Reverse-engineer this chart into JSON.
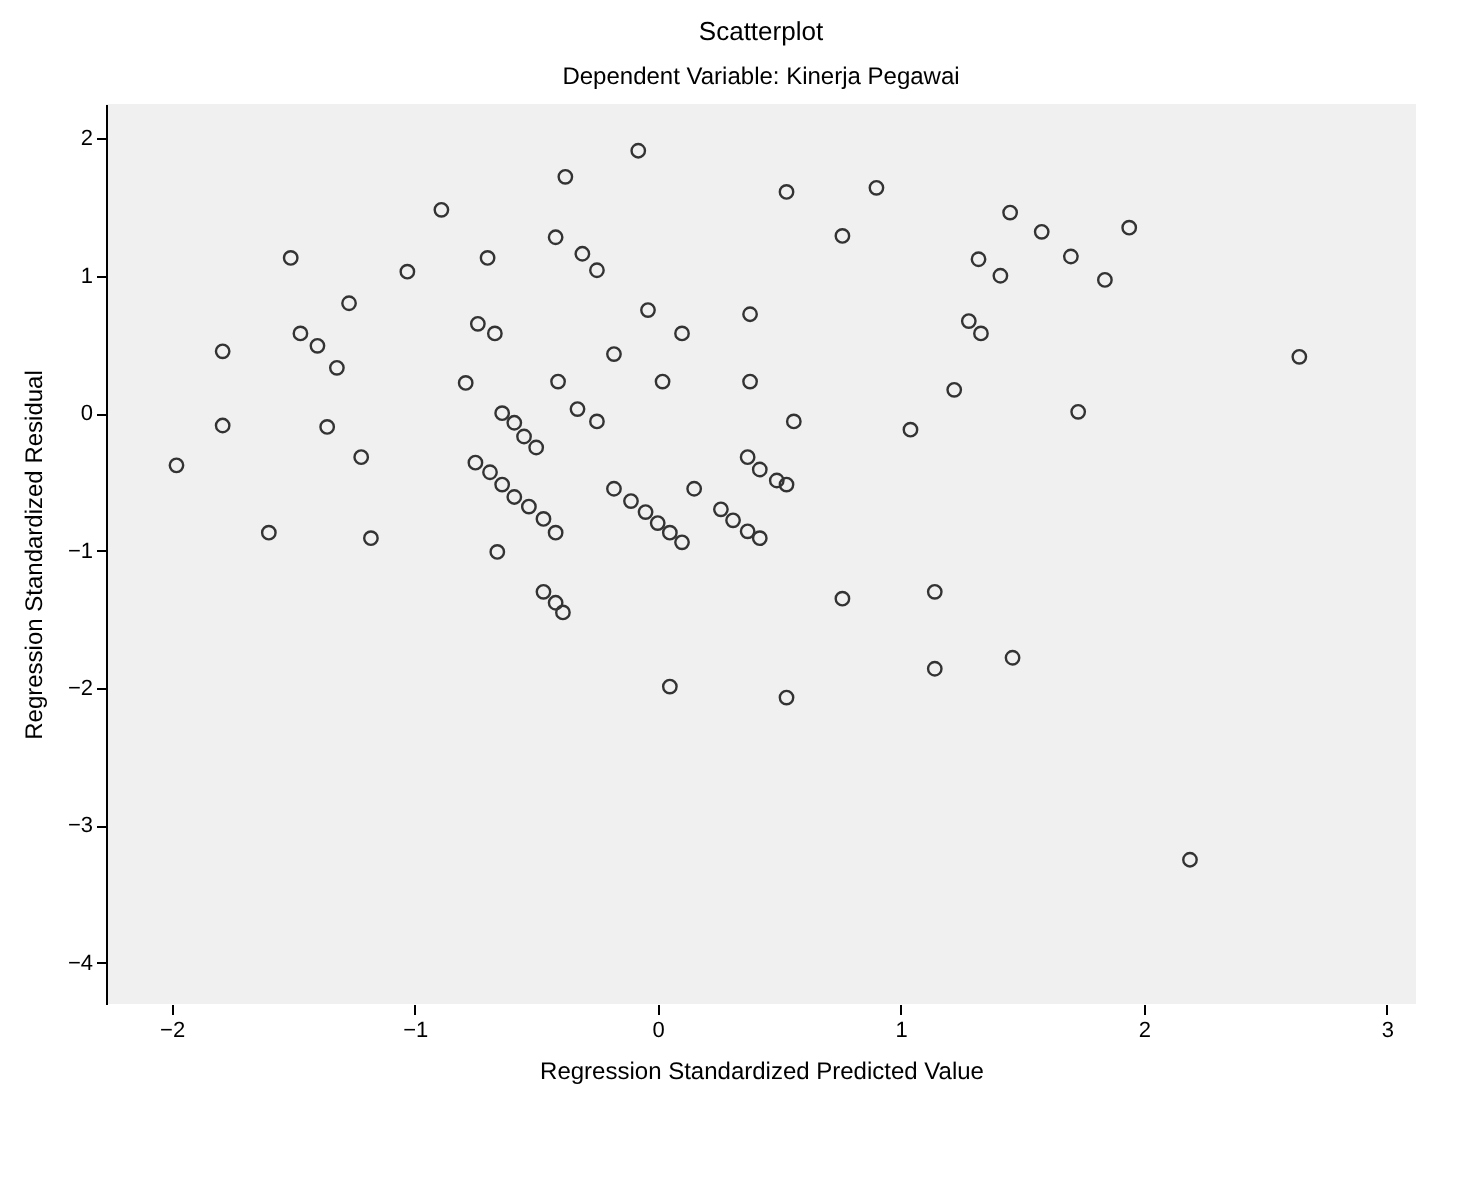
{
  "chart_data": {
    "type": "scatter",
    "title": "Scatterplot",
    "subtitle": "Dependent Variable: Kinerja Pegawai",
    "xlabel": "Regression Standardized Predicted Value",
    "ylabel": "Regression Standardized Residual",
    "xlim": [
      -2.27,
      3.12
    ],
    "ylim": [
      -4.3,
      2.25
    ],
    "xticks": [
      -2,
      -1,
      0,
      1,
      2,
      3
    ],
    "yticks": [
      -4,
      -3,
      -2,
      -1,
      0,
      1,
      2
    ],
    "grid": false,
    "marker": "circle",
    "x": [
      -1.98,
      -1.79,
      -1.79,
      -1.6,
      -1.51,
      -1.47,
      -1.4,
      -1.32,
      -1.36,
      -1.27,
      -1.22,
      -1.18,
      -1.03,
      -0.89,
      -0.7,
      -0.79,
      -0.74,
      -0.67,
      -0.64,
      -0.59,
      -0.55,
      -0.5,
      -0.75,
      -0.69,
      -0.64,
      -0.59,
      -0.53,
      -0.47,
      -0.42,
      -0.66,
      -0.47,
      -0.42,
      -0.39,
      -0.38,
      -0.42,
      -0.31,
      -0.25,
      -0.41,
      -0.33,
      -0.25,
      -0.18,
      -0.08,
      -0.04,
      0.1,
      0.02,
      -0.18,
      -0.11,
      -0.05,
      0.0,
      0.05,
      0.1,
      0.15,
      0.26,
      0.31,
      0.37,
      0.42,
      0.38,
      0.38,
      0.37,
      0.42,
      0.49,
      0.53,
      0.56,
      0.05,
      0.53,
      0.53,
      0.76,
      0.76,
      0.9,
      1.04,
      1.14,
      1.14,
      1.22,
      1.28,
      1.33,
      1.32,
      1.41,
      1.45,
      1.58,
      1.7,
      1.84,
      1.94,
      1.73,
      1.46,
      2.19,
      2.64
    ],
    "series": [
      {
        "color": "#333333",
        "values": [
          -0.38,
          0.45,
          -0.09,
          -0.87,
          1.13,
          0.58,
          0.49,
          0.33,
          -0.1,
          0.8,
          -0.32,
          -0.91,
          1.03,
          1.48,
          1.13,
          0.22,
          0.65,
          0.58,
          0.0,
          -0.07,
          -0.17,
          -0.25,
          -0.36,
          -0.43,
          -0.52,
          -0.61,
          -0.68,
          -0.77,
          -0.87,
          -1.01,
          -1.3,
          -1.38,
          -1.45,
          1.72,
          1.28,
          1.16,
          1.04,
          0.23,
          0.03,
          -0.06,
          0.43,
          1.91,
          0.75,
          0.58,
          0.23,
          -0.55,
          -0.64,
          -0.72,
          -0.8,
          -0.87,
          -0.94,
          -0.55,
          -0.7,
          -0.78,
          -0.86,
          -0.91,
          0.72,
          0.23,
          -0.32,
          -0.41,
          -0.49,
          -0.52,
          -0.06,
          -1.99,
          1.61,
          -2.07,
          1.29,
          -1.35,
          1.64,
          -0.12,
          -1.3,
          -1.86,
          0.17,
          0.67,
          0.58,
          1.12,
          1.0,
          1.46,
          1.32,
          1.14,
          0.97,
          1.35,
          0.01,
          -1.78,
          -3.25,
          0.41
        ]
      }
    ]
  }
}
